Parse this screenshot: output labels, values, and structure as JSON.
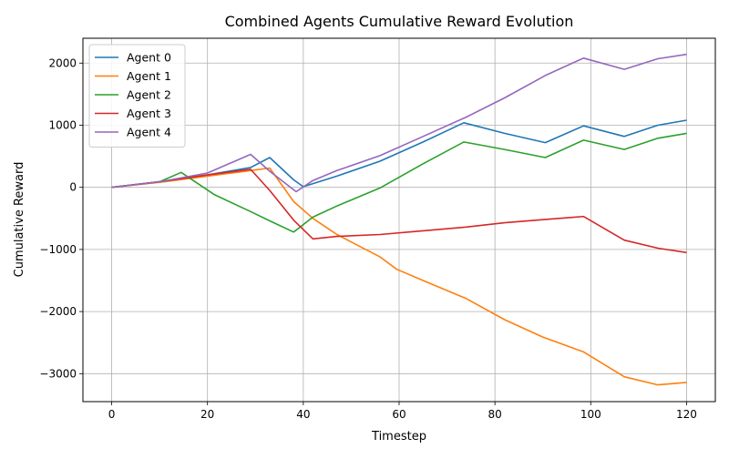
{
  "chart_data": {
    "type": "line",
    "title": "Combined Agents Cumulative Reward Evolution",
    "xlabel": "Timestep",
    "ylabel": "Cumulative Reward",
    "xlim": [
      -6,
      126
    ],
    "ylim": [
      -3450,
      2400
    ],
    "xticks": [
      0,
      20,
      40,
      60,
      80,
      100,
      120
    ],
    "yticks": [
      -3000,
      -2000,
      -1000,
      0,
      1000,
      2000
    ],
    "xtick_labels": [
      "0",
      "20",
      "40",
      "60",
      "80",
      "100",
      "120"
    ],
    "ytick_labels": [
      "−3000",
      "−2000",
      "−1000",
      "0",
      "1000",
      "2000"
    ],
    "grid": true,
    "legend_position": "top-left",
    "series": [
      {
        "name": "Agent 0",
        "color": "#1f77b4",
        "x": [
          0,
          10,
          20,
          29,
          33,
          38,
          40,
          47,
          56,
          65,
          73.5,
          82,
          90.5,
          98.5,
          107,
          114,
          120
        ],
        "y": [
          0,
          90,
          200,
          320,
          480,
          120,
          10,
          180,
          420,
          730,
          1040,
          870,
          720,
          990,
          820,
          1000,
          1080
        ]
      },
      {
        "name": "Agent 1",
        "color": "#ff7f0e",
        "x": [
          0,
          10,
          20,
          29,
          33,
          38,
          42,
          47,
          56,
          59.5,
          65,
          74,
          82,
          90,
          98.5,
          107,
          114,
          120
        ],
        "y": [
          0,
          80,
          180,
          270,
          310,
          -230,
          -500,
          -760,
          -1120,
          -1320,
          -1500,
          -1790,
          -2130,
          -2410,
          -2650,
          -3050,
          -3180,
          -3140
        ]
      },
      {
        "name": "Agent 2",
        "color": "#2ca02c",
        "x": [
          0,
          10,
          14.5,
          21.5,
          29,
          33,
          38,
          42,
          47,
          56,
          65,
          73.5,
          82,
          90.5,
          98.5,
          107,
          114,
          120
        ],
        "y": [
          0,
          90,
          240,
          -120,
          -390,
          -540,
          -720,
          -480,
          -300,
          -10,
          380,
          730,
          610,
          480,
          760,
          610,
          790,
          870
        ]
      },
      {
        "name": "Agent 3",
        "color": "#d62728",
        "x": [
          0,
          10,
          20,
          29,
          33,
          38,
          42,
          47,
          56,
          65,
          74,
          82,
          90,
          98.5,
          107,
          114,
          120
        ],
        "y": [
          0,
          90,
          200,
          290,
          -50,
          -530,
          -830,
          -790,
          -760,
          -700,
          -640,
          -570,
          -520,
          -470,
          -850,
          -980,
          -1050
        ]
      },
      {
        "name": "Agent 4",
        "color": "#9467bd",
        "x": [
          0,
          10,
          20,
          29,
          33,
          38.5,
          42,
          47,
          56,
          65,
          74,
          82,
          90.5,
          98.5,
          107,
          114,
          120
        ],
        "y": [
          0,
          90,
          230,
          530,
          260,
          -70,
          110,
          270,
          510,
          820,
          1130,
          1440,
          1800,
          2080,
          1900,
          2070,
          2140
        ]
      }
    ]
  }
}
